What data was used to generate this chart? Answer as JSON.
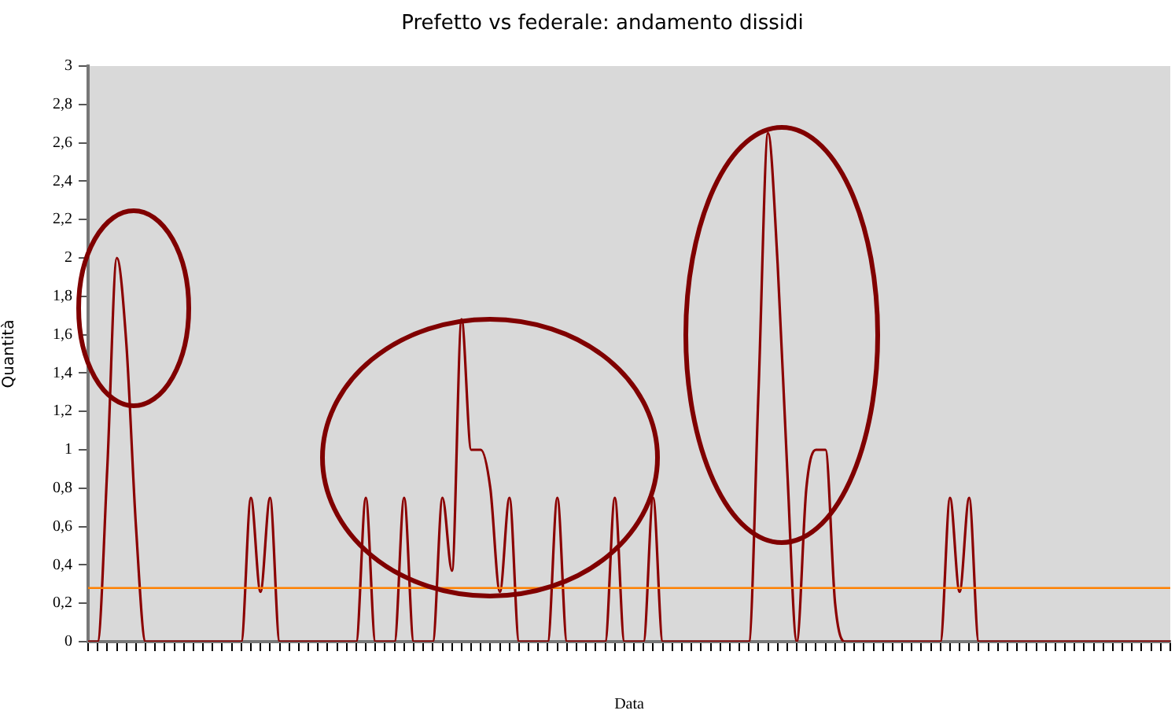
{
  "chart_data": {
    "type": "line",
    "title": "Prefetto vs federale: andamento dissidi",
    "xlabel": "Data",
    "ylabel": "Quantità",
    "categories": [
      null,
      null,
      null,
      null,
      null,
      null,
      null,
      null,
      null,
      null,
      null,
      null,
      null,
      null,
      null,
      null,
      null,
      null,
      null,
      null,
      null,
      null,
      null,
      null,
      null,
      null,
      null,
      null,
      null,
      null,
      null,
      null,
      null,
      null,
      null,
      null,
      null,
      null,
      null,
      null,
      null,
      null,
      null,
      null,
      null,
      null,
      null,
      null,
      null,
      null,
      null,
      null,
      null,
      null,
      null,
      null,
      null,
      null,
      null,
      null,
      null,
      null,
      null,
      null,
      null,
      null,
      null,
      null,
      null,
      null,
      null,
      null,
      null,
      null,
      null,
      null,
      null,
      null,
      null,
      null,
      null,
      null,
      null,
      null,
      null,
      null,
      null,
      null,
      null,
      null,
      null,
      null,
      null,
      null,
      null,
      null,
      null,
      null,
      null,
      null,
      null,
      null,
      null,
      null,
      null,
      null,
      null,
      null,
      null,
      null,
      null,
      null,
      null,
      null
    ],
    "series": [
      {
        "color": "#8b0000",
        "values": [
          0,
          0,
          0.9,
          2.0,
          1.55,
          0.6,
          0,
          0,
          0,
          0,
          0,
          0,
          0,
          0,
          0,
          0,
          0,
          0.75,
          0.26,
          0.75,
          0,
          0,
          0,
          0,
          0,
          0,
          0,
          0,
          0,
          0.75,
          0,
          0,
          0,
          0.75,
          0,
          0,
          0,
          0.75,
          0.37,
          1.68,
          1.0,
          1.0,
          0.8,
          0.26,
          0.75,
          0,
          0,
          0,
          0,
          0.75,
          0,
          0,
          0,
          0,
          0,
          0.75,
          0,
          0,
          0,
          0.75,
          0,
          0,
          0,
          0,
          0,
          0,
          0,
          0,
          0,
          0,
          1.3,
          2.65,
          1.97,
          0.9,
          0,
          0.8,
          1.0,
          1.0,
          0.2,
          0,
          0,
          0,
          0,
          0,
          0,
          0,
          0,
          0,
          0,
          0,
          0.75,
          0.26,
          0.75,
          0,
          0,
          0,
          0,
          0,
          0,
          0,
          0,
          0,
          0,
          0,
          0,
          0,
          0,
          0,
          0,
          0,
          0,
          0,
          0,
          0
        ]
      }
    ],
    "ylim": [
      0,
      3
    ],
    "yticks": [
      0,
      {
        "value": 0.2,
        "label": "0,2"
      },
      {
        "value": 0.4,
        "label": "0,4"
      },
      {
        "value": 0.6,
        "label": "0,6"
      },
      {
        "value": 0.8,
        "label": "0,8"
      },
      1,
      {
        "value": 1.2,
        "label": "1,2"
      },
      {
        "value": 1.4,
        "label": "1,4"
      },
      {
        "value": 1.6,
        "label": "1,6"
      },
      {
        "value": 1.8,
        "label": "1,8"
      },
      2,
      {
        "value": 2.2,
        "label": "2,2"
      },
      {
        "value": 2.4,
        "label": "2,4"
      },
      {
        "value": 2.6,
        "label": "2,6"
      },
      {
        "value": 2.8,
        "label": "2,8"
      },
      3
    ],
    "marker": "none",
    "line_style": "solid",
    "ref_lines": [
      {
        "axis": "y",
        "value": 0.28,
        "color": "#ff8000"
      }
    ]
  }
}
